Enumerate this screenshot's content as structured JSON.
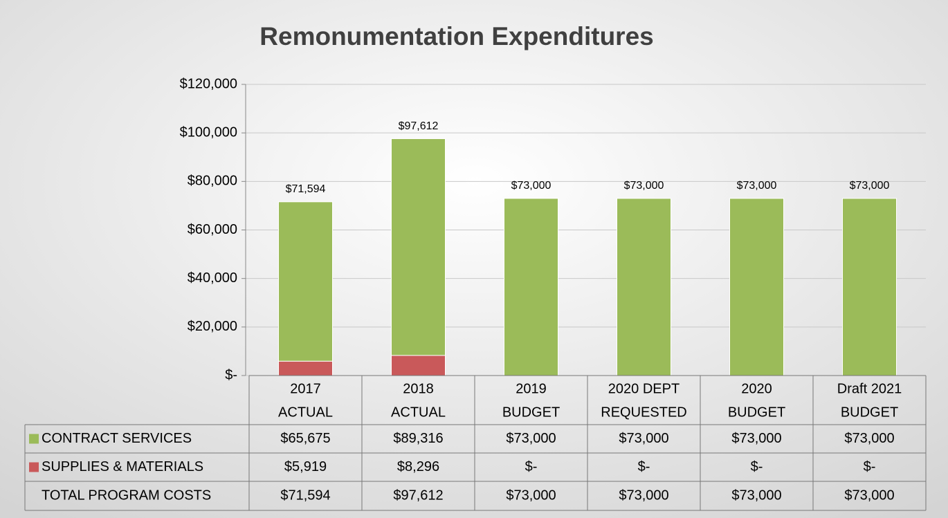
{
  "chart_data": {
    "type": "stacked_bar",
    "title": "Remonumentation Expenditures",
    "categories": [
      [
        "2017",
        "ACTUAL"
      ],
      [
        "2018",
        "ACTUAL"
      ],
      [
        "2019",
        "BUDGET"
      ],
      [
        "2020 DEPT",
        "REQUESTED"
      ],
      [
        "2020",
        "BUDGET"
      ],
      [
        "Draft 2021",
        "BUDGET"
      ]
    ],
    "series": [
      {
        "name": "SUPPLIES & MATERIALS",
        "color": "#c9595a",
        "values": [
          5919,
          8296,
          0,
          0,
          0,
          0
        ],
        "value_labels": [
          "$5,919",
          "$8,296",
          "$-",
          "$-",
          "$-",
          "$-"
        ]
      },
      {
        "name": "CONTRACT SERVICES",
        "color": "#9bbb59",
        "values": [
          65675,
          89316,
          73000,
          73000,
          73000,
          73000
        ],
        "value_labels": [
          "$65,675",
          "$89,316",
          "$73,000",
          "$73,000",
          "$73,000",
          "$73,000"
        ]
      }
    ],
    "totals": {
      "name": "TOTAL PROGRAM COSTS",
      "values": [
        71594,
        97612,
        73000,
        73000,
        73000,
        73000
      ],
      "value_labels": [
        "$71,594",
        "$97,612",
        "$73,000",
        "$73,000",
        "$73,000",
        "$73,000"
      ]
    },
    "ylim": [
      0,
      120000
    ],
    "yticks": [
      {
        "value": 0,
        "label": "$-"
      },
      {
        "value": 20000,
        "label": "$20,000"
      },
      {
        "value": 40000,
        "label": "$40,000"
      },
      {
        "value": 60000,
        "label": "$60,000"
      },
      {
        "value": 80000,
        "label": "$80,000"
      },
      {
        "value": 100000,
        "label": "$100,000"
      },
      {
        "value": 120000,
        "label": "$120,000"
      }
    ],
    "grid": true
  }
}
